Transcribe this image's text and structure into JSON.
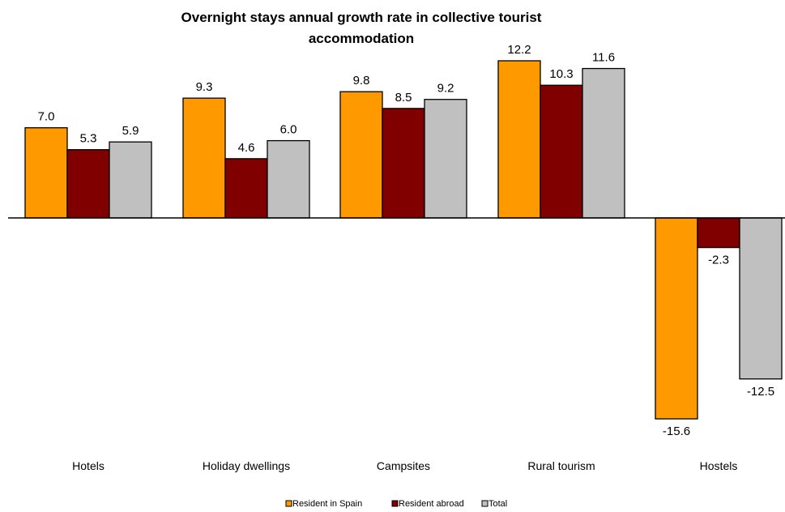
{
  "chart_data": {
    "type": "bar",
    "title_lines": [
      "Overnight stays annual growth rate in collective tourist",
      "accommodation"
    ],
    "categories": [
      "Hotels",
      "Holiday dwellings",
      "Campsites",
      "Rural tourism",
      "Hostels"
    ],
    "series": [
      {
        "name": "Resident in Spain",
        "color": "#FF9900",
        "values": [
          7.0,
          9.3,
          9.8,
          12.2,
          -15.6
        ],
        "labels": [
          "7.0",
          "9.3",
          "9.8",
          "12.2",
          "-15.6"
        ]
      },
      {
        "name": "Resident abroad",
        "color": "#800000",
        "values": [
          5.3,
          4.6,
          8.5,
          10.3,
          -2.3
        ],
        "labels": [
          "5.3",
          "4.6",
          "8.5",
          "10.3",
          "-2.3"
        ]
      },
      {
        "name": "Total",
        "color": "#C0C0C0",
        "values": [
          5.9,
          6.0,
          9.2,
          11.6,
          -12.5
        ],
        "labels": [
          "5.9",
          "6.0",
          "9.2",
          "11.6",
          "-12.5"
        ]
      }
    ],
    "xlabel": "",
    "ylabel": "",
    "grid": false,
    "legend_position": "bottom-center"
  }
}
